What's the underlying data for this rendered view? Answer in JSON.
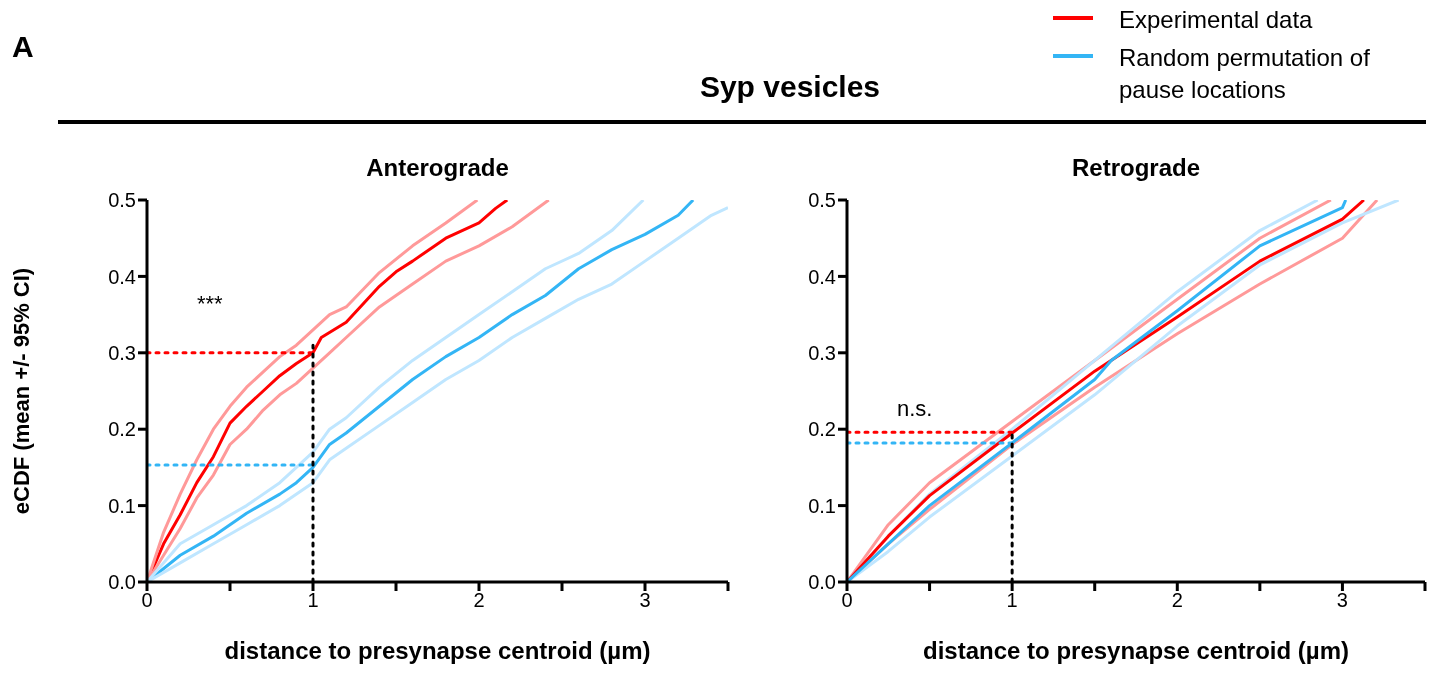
{
  "chart_data": [
    {
      "type": "line",
      "title": "Anterograde",
      "xlabel": "distance to presynapse centroid (µm)",
      "ylabel": "eCDF (mean +/- 95% CI)",
      "annotations": [
        "A",
        "Syp vesicles",
        "***"
      ],
      "legend": "top right",
      "marker": "none",
      "xlim": [
        0,
        3.5
      ],
      "ylim": [
        0,
        0.5
      ],
      "xticks": [
        0,
        {
          "value": 0.5,
          "label": null
        },
        1,
        {
          "value": 1.5,
          "label": null
        },
        2,
        {
          "value": 2.5,
          "label": null
        },
        3,
        {
          "value": 3.5,
          "label": null
        }
      ],
      "yticks": [
        {
          "value": 0,
          "label": "0.0"
        },
        0.1,
        0.2,
        0.3,
        0.4,
        0.5
      ],
      "series": [
        {
          "name": "Experimental data",
          "color": "#ff0000",
          "x": [
            0,
            0.1,
            0.2,
            0.3,
            0.4,
            0.5,
            0.6,
            0.7,
            0.8,
            0.9,
            1.0,
            1.05,
            1.2,
            1.4,
            1.5,
            1.6,
            1.8,
            2.0,
            2.1,
            2.17
          ],
          "values": [
            0,
            0.05,
            0.088,
            0.13,
            0.164,
            0.208,
            0.23,
            0.25,
            0.27,
            0.286,
            0.3,
            0.32,
            0.34,
            0.387,
            0.406,
            0.42,
            0.45,
            0.47,
            0.489,
            0.5
          ]
        },
        {
          "name": "Random permutation of pause locations",
          "color": "#33b5f5",
          "x": [
            0,
            0.2,
            0.4,
            0.6,
            0.8,
            0.9,
            1.0,
            1.1,
            1.2,
            1.4,
            1.6,
            1.8,
            2.0,
            2.2,
            2.4,
            2.6,
            2.8,
            3.0,
            3.2,
            3.29
          ],
          "values": [
            0,
            0.035,
            0.06,
            0.09,
            0.115,
            0.13,
            0.15,
            0.18,
            0.195,
            0.23,
            0.265,
            0.295,
            0.32,
            0.35,
            0.375,
            0.41,
            0.435,
            0.455,
            0.48,
            0.5
          ]
        },
        {
          "color": "#ff9999",
          "x": [
            0,
            0.1,
            0.2,
            0.3,
            0.4,
            0.5,
            0.6,
            0.7,
            0.8,
            0.9,
            1.0,
            1.1,
            1.2,
            1.4,
            1.6,
            1.8,
            1.99
          ],
          "values": [
            0,
            0.065,
            0.115,
            0.16,
            0.2,
            0.23,
            0.255,
            0.275,
            0.295,
            0.31,
            0.33,
            0.35,
            0.36,
            0.405,
            0.44,
            0.47,
            0.5
          ]
        },
        {
          "color": "#ff9999",
          "x": [
            0,
            0.1,
            0.2,
            0.3,
            0.4,
            0.5,
            0.6,
            0.7,
            0.8,
            0.9,
            1.0,
            1.1,
            1.2,
            1.4,
            1.6,
            1.8,
            2.0,
            2.2,
            2.42
          ],
          "values": [
            0,
            0.035,
            0.07,
            0.11,
            0.14,
            0.18,
            0.2,
            0.225,
            0.245,
            0.26,
            0.28,
            0.3,
            0.32,
            0.36,
            0.39,
            0.42,
            0.44,
            0.465,
            0.5
          ]
        },
        {
          "color": "#bfe6ff",
          "x": [
            0,
            0.2,
            0.4,
            0.6,
            0.8,
            1.0,
            1.1,
            1.2,
            1.4,
            1.6,
            1.8,
            2.0,
            2.2,
            2.4,
            2.6,
            2.8,
            2.99
          ],
          "values": [
            0,
            0.05,
            0.075,
            0.1,
            0.13,
            0.17,
            0.2,
            0.215,
            0.255,
            0.29,
            0.32,
            0.35,
            0.38,
            0.41,
            0.43,
            0.46,
            0.5
          ]
        },
        {
          "color": "#bfe6ff",
          "x": [
            0,
            0.2,
            0.4,
            0.6,
            0.8,
            1.0,
            1.1,
            1.2,
            1.4,
            1.6,
            1.8,
            2.0,
            2.2,
            2.4,
            2.6,
            2.8,
            3.0,
            3.2,
            3.4,
            3.5
          ],
          "values": [
            0,
            0.025,
            0.05,
            0.075,
            0.1,
            0.13,
            0.16,
            0.175,
            0.205,
            0.235,
            0.265,
            0.29,
            0.32,
            0.345,
            0.37,
            0.39,
            0.42,
            0.45,
            0.48,
            0.49
          ]
        },
        {
          "color": "#ff0000",
          "line_style": "dotted",
          "x": [
            0,
            1
          ],
          "values": [
            0.3,
            0.3
          ]
        },
        {
          "color": "#33b5f5",
          "line_style": "dotted",
          "x": [
            0,
            1
          ],
          "values": [
            0.153,
            0.153
          ]
        },
        {
          "color": "#000000",
          "line_style": "dotted",
          "x": [
            1,
            1
          ],
          "values": [
            0,
            0.31
          ]
        }
      ]
    },
    {
      "type": "line",
      "title": "Retrograde",
      "xlabel": "distance to presynapse centroid (µm)",
      "annotations": [
        "n.s."
      ],
      "marker": "none",
      "xlim": [
        0,
        3.5
      ],
      "ylim": [
        0,
        0.5
      ],
      "xticks": [
        0,
        {
          "value": 0.5,
          "label": null
        },
        1,
        {
          "value": 1.5,
          "label": null
        },
        2,
        {
          "value": 2.5,
          "label": null
        },
        3,
        {
          "value": 3.5,
          "label": null
        }
      ],
      "yticks": [
        {
          "value": 0,
          "label": "0.0"
        },
        0.1,
        0.2,
        0.3,
        0.4,
        0.5
      ],
      "series": [
        {
          "color": "#ff9999",
          "x": [
            0,
            0.25,
            0.5,
            1.0,
            1.5,
            2.0,
            2.5,
            2.93
          ],
          "values": [
            0,
            0.075,
            0.13,
            0.21,
            0.29,
            0.37,
            0.45,
            0.5
          ]
        },
        {
          "color": "#ff9999",
          "x": [
            0,
            0.25,
            0.5,
            1.0,
            1.5,
            2.0,
            2.5,
            3.0,
            3.21
          ],
          "values": [
            0,
            0.05,
            0.095,
            0.18,
            0.255,
            0.325,
            0.39,
            0.45,
            0.5
          ]
        },
        {
          "color": "#bfe6ff",
          "x": [
            0,
            0.25,
            0.5,
            1.0,
            1.5,
            2.0,
            2.5,
            2.85
          ],
          "values": [
            0,
            0.06,
            0.115,
            0.2,
            0.29,
            0.38,
            0.46,
            0.5
          ]
        },
        {
          "color": "#bfe6ff",
          "x": [
            0,
            0.25,
            0.5,
            1.0,
            1.5,
            2.0,
            2.5,
            3.0,
            3.34
          ],
          "values": [
            0,
            0.04,
            0.085,
            0.165,
            0.245,
            0.335,
            0.415,
            0.47,
            0.5
          ]
        },
        {
          "color": "#ff0000",
          "x": [
            0,
            0.25,
            0.5,
            1.0,
            1.5,
            2.0,
            2.5,
            3.0,
            3.13
          ],
          "values": [
            0,
            0.06,
            0.113,
            0.195,
            0.276,
            0.347,
            0.42,
            0.475,
            0.5
          ]
        },
        {
          "color": "#33b5f5",
          "x": [
            0,
            0.25,
            0.5,
            1.0,
            1.5,
            1.6,
            2.0,
            2.5,
            3.0,
            3.02
          ],
          "values": [
            0,
            0.05,
            0.1,
            0.182,
            0.265,
            0.29,
            0.355,
            0.44,
            0.49,
            0.5
          ]
        },
        {
          "color": "#ff0000",
          "line_style": "dotted",
          "x": [
            0,
            1
          ],
          "values": [
            0.196,
            0.196
          ]
        },
        {
          "color": "#33b5f5",
          "line_style": "dotted",
          "x": [
            0,
            1
          ],
          "values": [
            0.182,
            0.182
          ]
        },
        {
          "color": "#000000",
          "line_style": "dotted",
          "x": [
            1,
            1
          ],
          "values": [
            0,
            0.195
          ]
        }
      ]
    }
  ]
}
